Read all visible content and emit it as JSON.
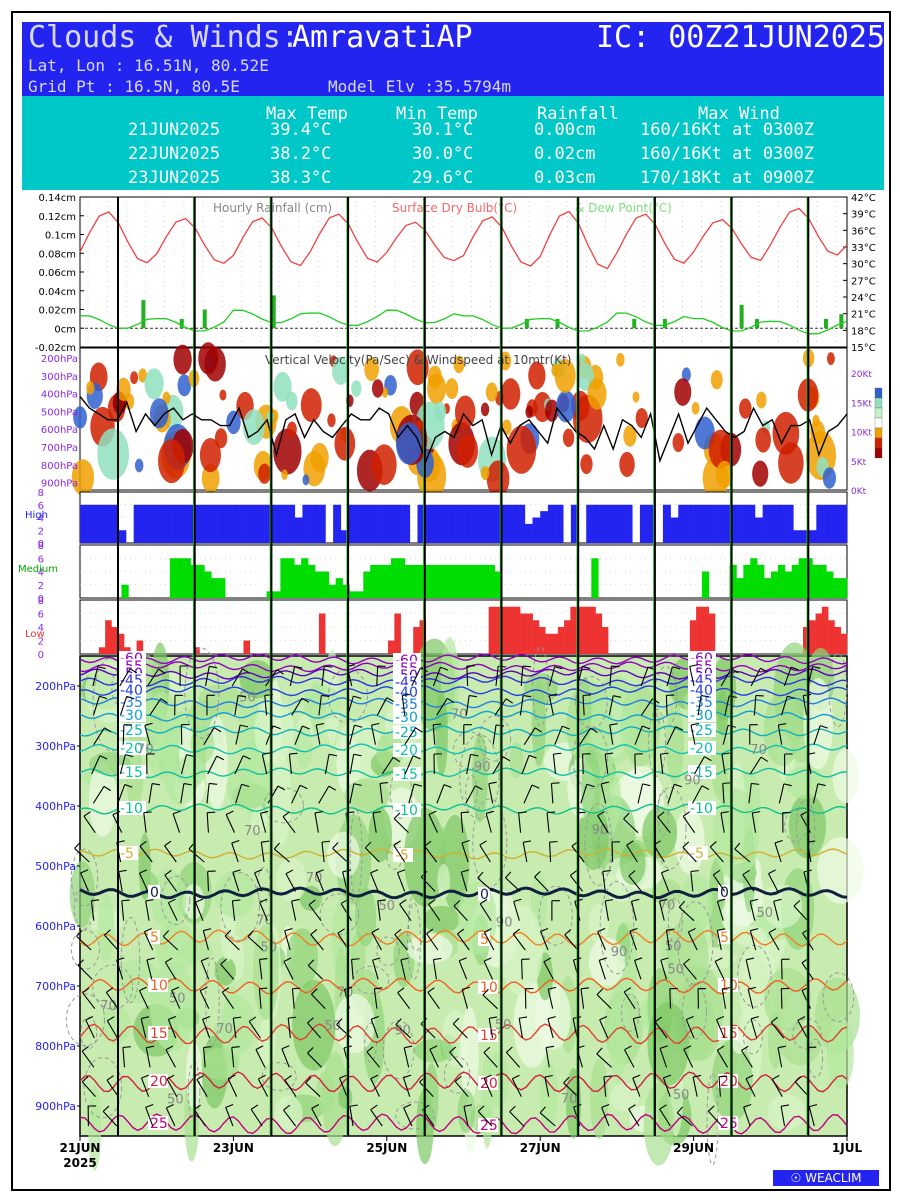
{
  "header": {
    "title_prefix": "Clouds & Winds:",
    "location": "AmravatiAP",
    "ic": "IC: 00Z21JUN2025",
    "latlon": "Lat, Lon : 16.51N, 80.52E",
    "gridpt": "Grid Pt  : 16.5N, 80.5E",
    "elev": "Model Elv :35.5794m"
  },
  "summary": {
    "columns": [
      "Max Temp",
      "Min Temp",
      "Rainfall",
      "Max Wind"
    ],
    "rows": [
      {
        "date": "21JUN2025",
        "max_temp": "39.4°C",
        "min_temp": "30.1°C",
        "rain": "0.00cm",
        "wind": "160/16Kt at 0300Z"
      },
      {
        "date": "22JUN2025",
        "max_temp": "38.2°C",
        "min_temp": "30.0°C",
        "rain": "0.02cm",
        "wind": "160/16Kt at 0300Z"
      },
      {
        "date": "23JUN2025",
        "max_temp": "38.3°C",
        "min_temp": "29.6°C",
        "rain": "0.03cm",
        "wind": "170/18Kt at 0900Z"
      }
    ]
  },
  "chart_data": [
    {
      "type": "line",
      "title": "Hourly Rainfall (cm)   Surface Dry Bulb(°C)  & Dew Point(°C)",
      "y_left_ticks": [
        "0.14cm",
        "0.12cm",
        "0.1cm",
        "0.08cm",
        "0.06cm",
        "0.04cm",
        "0.02cm",
        "0cm",
        "-0.02cm"
      ],
      "y_right_ticks": [
        "42°C",
        "39°C",
        "36°C",
        "33°C",
        "30°C",
        "27°C",
        "24°C",
        "21°C",
        "18°C",
        "15°C"
      ],
      "ylim_left": [
        -0.02,
        0.14
      ],
      "ylim_right": [
        15,
        42
      ],
      "series": [
        {
          "name": "Hourly Rainfall (cm)",
          "color": "#22b022"
        },
        {
          "name": "Surface Dry Bulb(°C)",
          "color": "#f04040"
        },
        {
          "name": "Dew Point(°C)",
          "color": "#22cc22"
        }
      ],
      "days": 10,
      "drybulb_max": [
        39.4,
        38.2,
        38.3,
        39.0,
        37.5,
        38.5,
        39.5,
        39.0,
        38.0,
        40.0
      ],
      "drybulb_min": [
        30.1,
        30.0,
        29.6,
        30.2,
        30.5,
        29.5,
        29.0,
        30.0,
        30.5,
        31.5
      ],
      "dewpoint": [
        19.5,
        19.0,
        20.5,
        20.0,
        20.5,
        19.5,
        19.0,
        20.0,
        19.0,
        18.5
      ],
      "rain_bars": [
        [
          0.8,
          0.03
        ],
        [
          1.3,
          0.01
        ],
        [
          1.6,
          0.02
        ],
        [
          2.5,
          0.035
        ],
        [
          5.8,
          0.01
        ],
        [
          6.2,
          0.01
        ],
        [
          7.2,
          0.01
        ],
        [
          7.6,
          0.01
        ],
        [
          8.6,
          0.025
        ],
        [
          8.8,
          0.01
        ],
        [
          9.7,
          0.01
        ],
        [
          9.9,
          0.015
        ]
      ]
    },
    {
      "type": "heatmap",
      "title": "Vertical Velocity(Pa/Sec) & Windspeed at 10mtr(Kt)",
      "y_left_ticks": [
        "200hPa",
        "300hPa",
        "400hPa",
        "500hPa",
        "600hPa",
        "700hPa",
        "800hPa",
        "900hPa"
      ],
      "y_right_ticks": [
        "20Kt",
        "15Kt",
        "10Kt",
        "5Kt",
        "0Kt"
      ],
      "ylim_right": [
        0,
        20
      ],
      "wind10m_kt": [
        16,
        14,
        13,
        12,
        12,
        15,
        10,
        13,
        11,
        13,
        14,
        12,
        13,
        12,
        12,
        11,
        11,
        14,
        9,
        10,
        12,
        6,
        12,
        13,
        9,
        12,
        10,
        9,
        11,
        13,
        12,
        12,
        14,
        13,
        9,
        11,
        9,
        5,
        9,
        10,
        9,
        13,
        11,
        12,
        6,
        11,
        8,
        11,
        12,
        10,
        8,
        14,
        12,
        10,
        9,
        7,
        11,
        7,
        12,
        11,
        9,
        13,
        5,
        9,
        13,
        8,
        11,
        14,
        12,
        10,
        9,
        10,
        14,
        11,
        12,
        8,
        11,
        11,
        12,
        6,
        10,
        11,
        13
      ],
      "colors": [
        "#3060d0",
        "#90e0c0",
        "#ffffff",
        "#f0a000",
        "#d02000",
        "#a00000"
      ]
    },
    {
      "type": "bar",
      "title": "High",
      "y_ticks": [
        "8",
        "6",
        "4",
        "2",
        "0"
      ],
      "ylim": [
        0,
        8
      ],
      "color": "#2424f0",
      "values": [
        6,
        6,
        6,
        6,
        6,
        2,
        0,
        6,
        6,
        6,
        6,
        6,
        6,
        6,
        6,
        6,
        6,
        6,
        6,
        6,
        6,
        6,
        6,
        6,
        6,
        6,
        6,
        6,
        4,
        6,
        6,
        6,
        0,
        6,
        2,
        6,
        6,
        6,
        6,
        6,
        6,
        6,
        6,
        0,
        6,
        6,
        6,
        6,
        6,
        6,
        6,
        6,
        6,
        6,
        6,
        6,
        6,
        6,
        3,
        4,
        5,
        6,
        6,
        0,
        6,
        0,
        6,
        6,
        6,
        6,
        6,
        6,
        0,
        6,
        6,
        0,
        6,
        4,
        6,
        6,
        6,
        6,
        6,
        6,
        6,
        6,
        6,
        6,
        4,
        6,
        6,
        6,
        6,
        2,
        2,
        2,
        6,
        6,
        6,
        6
      ]
    },
    {
      "type": "bar",
      "title": "Medium",
      "y_ticks": [
        "8",
        "6",
        "4",
        "2",
        "0"
      ],
      "ylim": [
        0,
        8
      ],
      "color": "#00dd00",
      "values": [
        0,
        0,
        0,
        0,
        0,
        0,
        2,
        0,
        0,
        0,
        0,
        0,
        0,
        6,
        6,
        6,
        5,
        5,
        4,
        3,
        3,
        0,
        0,
        0,
        0,
        0,
        0,
        1,
        1,
        6,
        6,
        5,
        6,
        5,
        4,
        4,
        2,
        3,
        2,
        1,
        1,
        4,
        5,
        5,
        5,
        6,
        6,
        5,
        5,
        5,
        5,
        5,
        5,
        5,
        5,
        5,
        5,
        5,
        5,
        5,
        4,
        0,
        0,
        0,
        0,
        0,
        0,
        0,
        0,
        0,
        0,
        0,
        0,
        0,
        6,
        0,
        0,
        0,
        0,
        0,
        0,
        0,
        0,
        0,
        0,
        0,
        0,
        0,
        0,
        0,
        4,
        0,
        0,
        0,
        5,
        3,
        5,
        6,
        5,
        3,
        4,
        5,
        4,
        5,
        6,
        6,
        5,
        5,
        4,
        3,
        3
      ]
    },
    {
      "type": "bar",
      "title": "Low",
      "y_ticks": [
        "8",
        "6",
        "4",
        "2",
        "0"
      ],
      "ylim": [
        0,
        8
      ],
      "color": "#ee3333",
      "values": [
        0,
        0,
        0,
        1,
        5,
        4,
        3,
        1,
        0,
        2,
        0,
        0,
        0,
        0,
        0,
        0,
        0,
        0,
        1,
        0,
        0,
        0,
        0,
        0,
        0,
        0,
        2,
        0,
        0,
        0,
        0,
        0,
        0,
        0,
        0,
        0,
        0,
        0,
        6,
        0,
        0,
        0,
        0,
        0,
        0,
        0,
        0,
        0,
        0,
        2,
        6,
        0,
        0,
        4,
        5,
        0,
        0,
        0,
        0,
        0,
        0,
        0,
        0,
        0,
        0,
        7,
        7,
        7,
        7,
        7,
        6,
        6,
        5,
        4,
        3,
        3,
        4,
        5,
        7,
        7,
        7,
        7,
        6,
        4,
        0,
        0,
        0,
        0,
        0,
        0,
        0,
        0,
        0,
        0,
        0,
        0,
        0,
        5,
        7,
        7,
        6,
        0,
        0,
        0,
        0,
        0,
        0,
        0,
        0,
        0,
        0,
        0,
        0,
        0,
        0,
        4,
        5,
        6,
        7,
        5,
        4,
        3
      ]
    },
    {
      "type": "heatmap",
      "title": "",
      "y_ticks": [
        "200hPa",
        "300hPa",
        "400hPa",
        "500hPa",
        "600hPa",
        "700hPa",
        "800hPa",
        "900hPa"
      ],
      "x_ticks": [
        "21JUN",
        "23JUN",
        "25JUN",
        "27JUN",
        "29JUN",
        "1JUL"
      ],
      "x_year": "2025",
      "temp_contours": [
        {
          "level": "-60",
          "hPa": 155,
          "color": "#9000c0"
        },
        {
          "level": "-55",
          "hPa": 168,
          "color": "#9000c0"
        },
        {
          "level": "-50",
          "hPa": 180,
          "color": "#6000c0"
        },
        {
          "level": "-45",
          "hPa": 192,
          "color": "#3030e0"
        },
        {
          "level": "-40",
          "hPa": 208,
          "color": "#2040e0"
        },
        {
          "level": "-35",
          "hPa": 228,
          "color": "#2080e0"
        },
        {
          "level": "-30",
          "hPa": 250,
          "color": "#10a0d0"
        },
        {
          "level": "-25",
          "hPa": 275,
          "color": "#10b0c0"
        },
        {
          "level": "-20",
          "hPa": 305,
          "color": "#10c0b0"
        },
        {
          "level": "-15",
          "hPa": 345,
          "color": "#10c0a0"
        },
        {
          "level": "-10",
          "hPa": 405,
          "color": "#10c090"
        },
        {
          "level": "-5",
          "hPa": 480,
          "color": "#d0b030"
        },
        {
          "level": "0",
          "hPa": 545,
          "color": "#102040"
        },
        {
          "level": "5",
          "hPa": 620,
          "color": "#f08020"
        },
        {
          "level": "10",
          "hPa": 700,
          "color": "#f06020"
        },
        {
          "level": "15",
          "hPa": 780,
          "color": "#e04030"
        },
        {
          "level": "20",
          "hPa": 860,
          "color": "#d02040"
        },
        {
          "level": "25",
          "hPa": 930,
          "color": "#c00080"
        }
      ],
      "rh_labels": [
        "90",
        "70",
        "50"
      ]
    }
  ],
  "footer": {
    "logo": "WEACLIM"
  }
}
